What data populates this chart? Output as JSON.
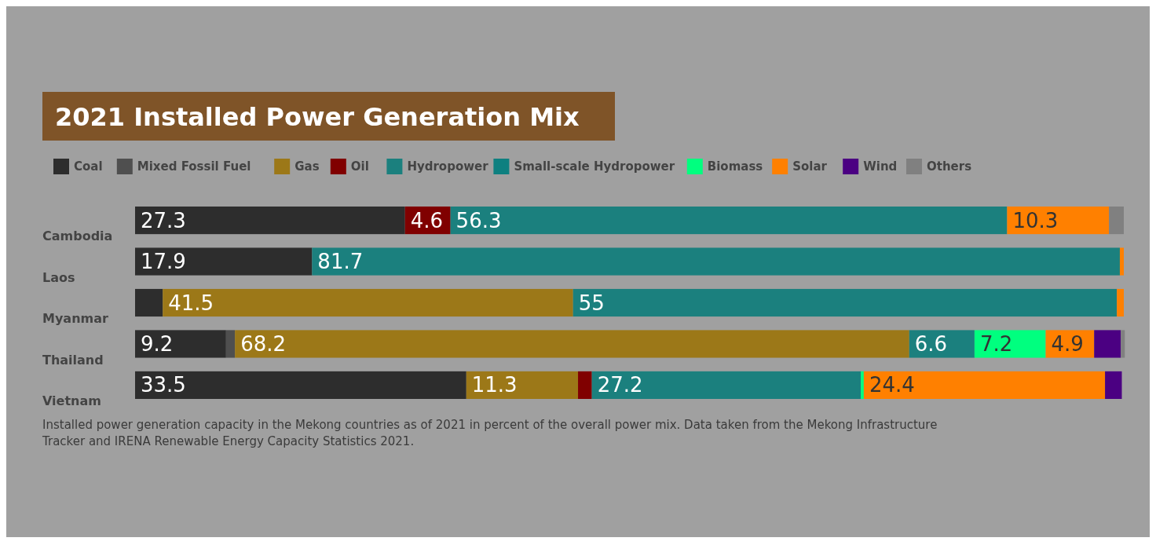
{
  "chart_data": {
    "type": "bar",
    "orientation": "horizontal",
    "stacked": true,
    "xlim": [
      0,
      100
    ],
    "tick_labels": "y",
    "title": "2021 Installed Power Generation Mix",
    "categories": [
      "Cambodia",
      "Laos",
      "Myanmar",
      "Thailand",
      "Vietnam"
    ],
    "legend": "top left",
    "series": [
      {
        "name": "Coal",
        "color": "#2d2d2d",
        "values": [
          27.3,
          17.9,
          2.8,
          9.2,
          33.5
        ],
        "value_labels": [
          "27.3",
          "17.9",
          null,
          "9.2",
          "33.5"
        ]
      },
      {
        "name": "Mixed Fossil Fuel",
        "color": "#4f4f4f",
        "values": [
          null,
          null,
          null,
          0.9,
          null
        ]
      },
      {
        "name": "Gas",
        "color": "#9c7818",
        "values": [
          null,
          null,
          41.5,
          68.2,
          11.3
        ],
        "value_labels": [
          null,
          null,
          "41.5",
          "68.2",
          "11.3"
        ]
      },
      {
        "name": "Oil",
        "color": "#800000",
        "values": [
          4.6,
          null,
          null,
          null,
          1.4
        ],
        "value_labels": [
          "4.6",
          null,
          null,
          null,
          null
        ]
      },
      {
        "name": "Hydropower",
        "color": "#1b807e",
        "values": [
          56.3,
          81.7,
          55,
          6.6,
          27.2
        ],
        "value_labels": [
          "56.3",
          "81.7",
          "55",
          "6.6",
          "27.2"
        ]
      },
      {
        "name": "Small-scale Hydropower",
        "color": "#0e8080",
        "values": [
          null,
          null,
          null,
          null,
          null
        ]
      },
      {
        "name": "Biomass",
        "color": "#00ff7f",
        "values": [
          null,
          null,
          null,
          7.2,
          0.3
        ],
        "value_labels": [
          null,
          null,
          null,
          "7.2",
          null
        ]
      },
      {
        "name": "Solar",
        "color": "#ff8000",
        "values": [
          10.3,
          0.4,
          0.7,
          4.9,
          24.4
        ],
        "value_labels": [
          "10.3",
          null,
          null,
          "4.9",
          "24.4"
        ]
      },
      {
        "name": "Wind",
        "color": "#4b0082",
        "values": [
          null,
          null,
          null,
          2.7,
          1.7
        ]
      },
      {
        "name": "Others",
        "color": "#808080",
        "values": [
          1.5,
          null,
          null,
          0.4,
          null
        ]
      }
    ],
    "annotations": [
      "Installed power generation capacity in the Mekong countries as of 2021 in percent of the overall power mix. Data taken from the Mekong Infrastructure Tracker and IRENA Renewable Energy Capacity Statistics 2021."
    ]
  }
}
